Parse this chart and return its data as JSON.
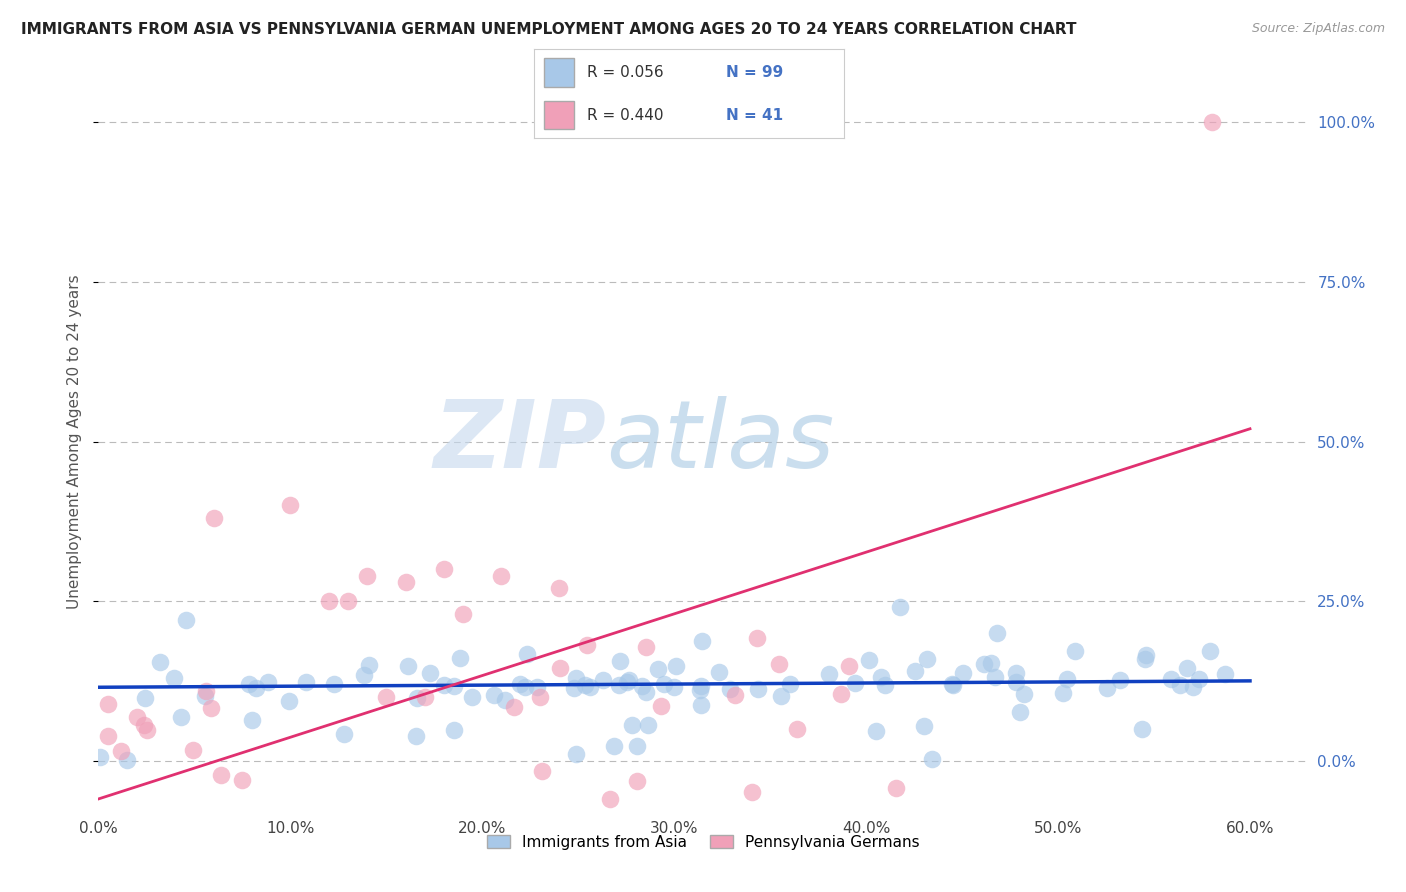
{
  "title": "IMMIGRANTS FROM ASIA VS PENNSYLVANIA GERMAN UNEMPLOYMENT AMONG AGES 20 TO 24 YEARS CORRELATION CHART",
  "source": "Source: ZipAtlas.com",
  "ylabel": "Unemployment Among Ages 20 to 24 years",
  "ytick_labels": [
    "0.0%",
    "25.0%",
    "50.0%",
    "75.0%",
    "100.0%"
  ],
  "ytick_vals": [
    0.0,
    0.25,
    0.5,
    0.75,
    1.0
  ],
  "xtick_labels": [
    "0.0%",
    "10.0%",
    "20.0%",
    "30.0%",
    "40.0%",
    "50.0%",
    "60.0%"
  ],
  "xtick_vals": [
    0.0,
    0.1,
    0.2,
    0.3,
    0.4,
    0.5,
    0.6
  ],
  "xlim": [
    0.0,
    0.63
  ],
  "ylim": [
    -0.08,
    1.08
  ],
  "legend_r1": "R = 0.056",
  "legend_n1": "N = 99",
  "legend_r2": "R = 0.440",
  "legend_n2": "N = 41",
  "color_blue": "#A8C8E8",
  "color_pink": "#F0A0B8",
  "trendline_blue": "#1040C0",
  "trendline_pink": "#E03070",
  "watermark_zip": "ZIP",
  "watermark_atlas": "atlas",
  "background": "#FFFFFF",
  "grid_color": "#BBBBBB",
  "blue_trendline_y0": 0.115,
  "blue_trendline_y1": 0.125,
  "pink_trendline_y0": -0.06,
  "pink_trendline_y1": 0.52,
  "legend_label1": "Immigrants from Asia",
  "legend_label2": "Pennsylvania Germans"
}
